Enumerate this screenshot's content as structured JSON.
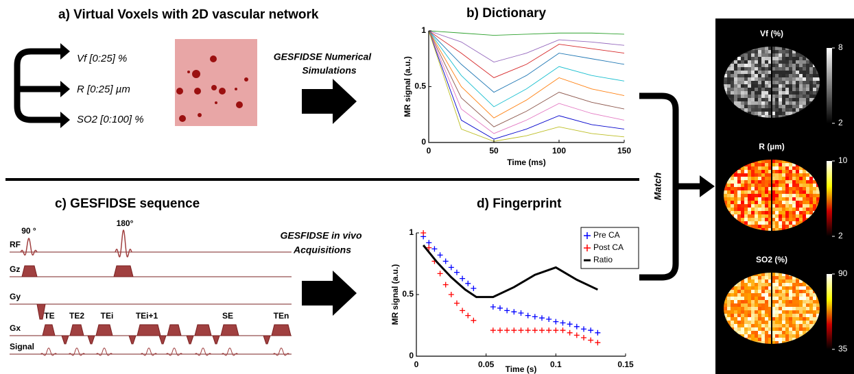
{
  "panel_a": {
    "title": "a)  Virtual Voxels with 2D vascular network",
    "params": [
      "Vf [0:25] %",
      "R [0:25] µm",
      "SO2 [0:100] %"
    ]
  },
  "arrow_a": [
    "GESFIDSE Numerical",
    "Simulations"
  ],
  "panel_c": {
    "title": "c)  GESFIDSE sequence",
    "rows": [
      "RF",
      "Gz",
      "Gy",
      "Gx",
      "Signal"
    ],
    "pulses": [
      "90 °",
      "180°"
    ],
    "echoes": [
      "TE",
      "TE2",
      "TEi",
      "TEi+1",
      "SE",
      "TEn"
    ]
  },
  "arrow_c": [
    "GESFIDSE in vivo",
    "Acquisitions"
  ],
  "match": "Match",
  "chart_data": [
    {
      "type": "line",
      "title": "b)  Dictionary",
      "xlabel": "Time (ms)",
      "ylabel": "MR signal (a.u.)",
      "x": [
        0,
        25,
        50,
        75,
        100,
        125,
        150
      ],
      "xlim": [
        0,
        150
      ],
      "xticks": [
        0,
        50,
        100,
        150
      ],
      "ylim": [
        0,
        1
      ],
      "yticks": [
        0,
        0.5,
        1
      ],
      "series": [
        {
          "color": "#2ca02c",
          "values": [
            1,
            0.98,
            0.96,
            0.97,
            0.98,
            0.98,
            0.97
          ]
        },
        {
          "color": "#9467bd",
          "values": [
            1,
            0.9,
            0.72,
            0.8,
            0.92,
            0.9,
            0.87
          ]
        },
        {
          "color": "#d62728",
          "values": [
            1,
            0.8,
            0.58,
            0.7,
            0.88,
            0.84,
            0.8
          ]
        },
        {
          "color": "#1f77b4",
          "values": [
            1,
            0.7,
            0.45,
            0.6,
            0.8,
            0.75,
            0.7
          ]
        },
        {
          "color": "#17becf",
          "values": [
            1,
            0.6,
            0.32,
            0.48,
            0.68,
            0.6,
            0.55
          ]
        },
        {
          "color": "#ff7f0e",
          "values": [
            1,
            0.5,
            0.22,
            0.38,
            0.58,
            0.48,
            0.42
          ]
        },
        {
          "color": "#8c564b",
          "values": [
            1,
            0.4,
            0.14,
            0.28,
            0.45,
            0.36,
            0.3
          ]
        },
        {
          "color": "#e377c2",
          "values": [
            1,
            0.3,
            0.08,
            0.2,
            0.35,
            0.26,
            0.2
          ]
        },
        {
          "color": "#0000cc",
          "values": [
            1,
            0.2,
            0.03,
            0.12,
            0.24,
            0.16,
            0.12
          ]
        },
        {
          "color": "#bcbd22",
          "values": [
            1,
            0.12,
            0.01,
            0.06,
            0.14,
            0.08,
            0.05
          ]
        }
      ]
    },
    {
      "type": "scatter",
      "title": "d)  Fingerprint",
      "xlabel": "Time (s)",
      "ylabel": "MR signal (a.u.)",
      "xlim": [
        0,
        0.15
      ],
      "xticks": [
        0,
        0.05,
        0.1,
        0.15
      ],
      "ylim": [
        0,
        1
      ],
      "yticks": [
        0,
        0.5,
        1
      ],
      "legend": "upper right",
      "series": [
        {
          "name": "Pre CA",
          "color": "#0000ff",
          "mode": "markers",
          "x": [
            0.005,
            0.009,
            0.013,
            0.017,
            0.021,
            0.025,
            0.029,
            0.033,
            0.037,
            0.041,
            0.055,
            0.06,
            0.065,
            0.07,
            0.075,
            0.08,
            0.085,
            0.09,
            0.095,
            0.1,
            0.105,
            0.11,
            0.115,
            0.12,
            0.125,
            0.13
          ],
          "values": [
            0.97,
            0.92,
            0.87,
            0.82,
            0.77,
            0.72,
            0.68,
            0.63,
            0.59,
            0.55,
            0.4,
            0.39,
            0.37,
            0.36,
            0.35,
            0.33,
            0.32,
            0.31,
            0.3,
            0.28,
            0.27,
            0.26,
            0.24,
            0.22,
            0.21,
            0.19
          ]
        },
        {
          "name": "Post CA",
          "color": "#ff0000",
          "mode": "markers",
          "x": [
            0.005,
            0.009,
            0.013,
            0.017,
            0.021,
            0.025,
            0.029,
            0.033,
            0.037,
            0.041,
            0.055,
            0.06,
            0.065,
            0.07,
            0.075,
            0.08,
            0.085,
            0.09,
            0.095,
            0.1,
            0.105,
            0.11,
            0.115,
            0.12,
            0.125,
            0.13
          ],
          "values": [
            1,
            0.88,
            0.77,
            0.67,
            0.58,
            0.5,
            0.43,
            0.37,
            0.33,
            0.29,
            0.21,
            0.21,
            0.21,
            0.21,
            0.21,
            0.21,
            0.21,
            0.21,
            0.21,
            0.21,
            0.21,
            0.19,
            0.17,
            0.15,
            0.13,
            0.11
          ]
        },
        {
          "name": "Ratio",
          "color": "#000000",
          "mode": "line",
          "x": [
            0.005,
            0.015,
            0.025,
            0.035,
            0.043,
            0.055,
            0.07,
            0.085,
            0.1,
            0.115,
            0.13
          ],
          "values": [
            0.9,
            0.76,
            0.64,
            0.54,
            0.48,
            0.48,
            0.56,
            0.66,
            0.72,
            0.62,
            0.54
          ]
        }
      ]
    }
  ],
  "maps": [
    {
      "title": "Vf (%)",
      "colormap": "gray",
      "clim": [
        2,
        8
      ],
      "cticks": [
        8,
        2
      ]
    },
    {
      "title": "R (µm)",
      "colormap": "hot",
      "clim": [
        2,
        10
      ],
      "cticks": [
        10,
        2
      ]
    },
    {
      "title": "SO2 (%)",
      "colormap": "hot",
      "clim": [
        35,
        90
      ],
      "cticks": [
        90,
        35
      ]
    }
  ]
}
